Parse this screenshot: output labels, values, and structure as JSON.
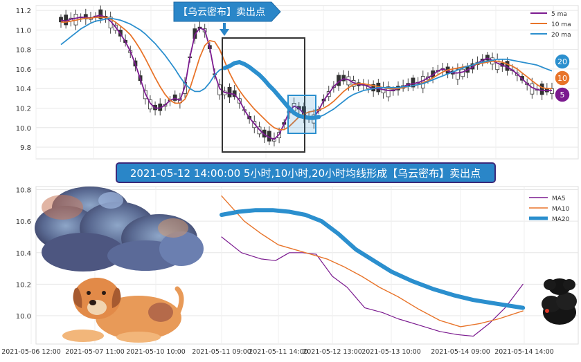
{
  "banner_top": "【乌云密布】卖出点",
  "banner_mid": "2021-05-12 14:00:00 5小时,10小时,20小时均线形成【乌云密布】卖出点",
  "colors": {
    "ma5": "#7b1a8f",
    "ma10": "#e8742a",
    "ma20": "#2b8fce",
    "banner": "#1f78c8",
    "banner_mid_border": "#3b2a7a",
    "box": "#333333"
  },
  "chart_data": [
    {
      "type": "line",
      "title": "",
      "ylim": [
        9.68,
        11.25
      ],
      "yticks": [
        "9.8",
        "10.0",
        "10.2",
        "10.4",
        "10.6",
        "10.8",
        "11.0",
        "11.2"
      ],
      "ytick_values": [
        9.8,
        10.0,
        10.2,
        10.4,
        10.6,
        10.8,
        11.0,
        11.2
      ],
      "legend": [
        "5 ma",
        "10 ma",
        "20 ma"
      ],
      "legend_position": "top-right",
      "grid": true,
      "badges": [
        "20",
        "10",
        "5"
      ],
      "n_points": 100,
      "series": [
        {
          "name": "5 ma",
          "values": [
            11.1,
            11.09,
            11.11,
            11.12,
            11.13,
            11.13,
            11.12,
            11.14,
            11.15,
            11.13,
            11.09,
            11.03,
            10.96,
            10.88,
            10.78,
            10.65,
            10.5,
            10.35,
            10.25,
            10.2,
            10.2,
            10.23,
            10.28,
            10.3,
            10.28,
            10.42,
            10.72,
            10.95,
            11.02,
            11.0,
            10.82,
            10.55,
            10.4,
            10.36,
            10.35,
            10.34,
            10.28,
            10.18,
            10.1,
            10.04,
            9.98,
            9.93,
            9.9,
            9.88,
            9.93,
            10.04,
            10.16,
            10.22,
            10.2,
            10.14,
            10.1,
            10.1,
            10.18,
            10.28,
            10.35,
            10.42,
            10.47,
            10.5,
            10.49,
            10.46,
            10.44,
            10.44,
            10.42,
            10.4,
            10.4,
            10.39,
            10.38,
            10.38,
            10.4,
            10.42,
            10.44,
            10.45,
            10.46,
            10.48,
            10.51,
            10.54,
            10.58,
            10.6,
            10.58,
            10.56,
            10.56,
            10.57,
            10.59,
            10.62,
            10.66,
            10.69,
            10.71,
            10.69,
            10.66,
            10.64,
            10.62,
            10.59,
            10.55,
            10.5,
            10.45,
            10.41,
            10.39,
            10.38,
            10.38,
            10.38
          ]
        },
        {
          "name": "10 ma",
          "values": [
            11.08,
            11.08,
            11.09,
            11.1,
            11.11,
            11.12,
            11.12,
            11.13,
            11.13,
            11.13,
            11.11,
            11.08,
            11.04,
            11.0,
            10.95,
            10.88,
            10.8,
            10.71,
            10.61,
            10.51,
            10.42,
            10.34,
            10.28,
            10.25,
            10.25,
            10.29,
            10.4,
            10.56,
            10.72,
            10.84,
            10.89,
            10.88,
            10.8,
            10.68,
            10.56,
            10.46,
            10.38,
            10.31,
            10.25,
            10.19,
            10.14,
            10.09,
            10.04,
            10.0,
            9.98,
            9.98,
            10.01,
            10.06,
            10.11,
            10.14,
            10.16,
            10.17,
            10.18,
            10.2,
            10.23,
            10.27,
            10.32,
            10.37,
            10.41,
            10.44,
            10.45,
            10.45,
            10.44,
            10.43,
            10.42,
            10.41,
            10.4,
            10.4,
            10.4,
            10.41,
            10.42,
            10.43,
            10.44,
            10.46,
            10.48,
            10.51,
            10.54,
            10.57,
            10.59,
            10.6,
            10.61,
            10.62,
            10.63,
            10.64,
            10.65,
            10.66,
            10.67,
            10.68,
            10.68,
            10.67,
            10.65,
            10.63,
            10.6,
            10.56,
            10.52,
            10.48,
            10.44,
            10.41,
            10.4,
            10.4
          ]
        },
        {
          "name": "20 ma",
          "values": [
            10.85,
            10.89,
            10.93,
            10.97,
            11.01,
            11.04,
            11.07,
            11.09,
            11.1,
            11.11,
            11.12,
            11.11,
            11.1,
            11.08,
            11.06,
            11.03,
            11.0,
            10.96,
            10.91,
            10.86,
            10.8,
            10.74,
            10.67,
            10.6,
            10.52,
            10.45,
            10.4,
            10.37,
            10.37,
            10.4,
            10.46,
            10.54,
            10.59,
            10.61,
            10.63,
            10.66,
            10.67,
            10.65,
            10.62,
            10.58,
            10.54,
            10.49,
            10.43,
            10.38,
            10.32,
            10.26,
            10.2,
            10.15,
            10.12,
            10.11,
            10.1,
            10.1,
            10.11,
            10.13,
            10.16,
            10.19,
            10.23,
            10.27,
            10.31,
            10.34,
            10.36,
            10.38,
            10.39,
            10.4,
            10.41,
            10.41,
            10.41,
            10.41,
            10.41,
            10.42,
            10.42,
            10.43,
            10.44,
            10.45,
            10.47,
            10.49,
            10.51,
            10.53,
            10.55,
            10.57,
            10.59,
            10.61,
            10.63,
            10.64,
            10.66,
            10.67,
            10.68,
            10.69,
            10.7,
            10.7,
            10.7,
            10.69,
            10.68,
            10.67,
            10.66,
            10.65,
            10.64,
            10.62,
            10.6,
            10.58
          ]
        }
      ]
    },
    {
      "type": "line",
      "title": "",
      "ylim": [
        9.82,
        10.82
      ],
      "yticks": [
        "10.0",
        "10.2",
        "10.4",
        "10.6",
        "10.8"
      ],
      "ytick_values": [
        10.0,
        10.2,
        10.4,
        10.6,
        10.8
      ],
      "x": [
        "2021-05-06 12:00",
        "2021-05-07 11:00",
        "2021-05-10 10:00",
        "2021-05-11 09:00",
        "2021-05-11 14:00",
        "2021-05-12 13:00",
        "2021-05-13 10:00",
        "2021-05-14 09:00",
        "2021-05-14 14:00"
      ],
      "legend": [
        "MA5",
        "MA10",
        "MA20"
      ],
      "legend_position": "top-right",
      "grid": true,
      "series": [
        {
          "name": "MA5",
          "x": [
            3,
            3.35,
            3.7,
            3.95,
            4.2,
            4.45,
            4.7,
            5.0,
            5.25,
            5.55,
            5.85,
            6.1,
            6.4,
            6.7,
            6.95,
            7.2,
            7.45,
            7.7,
            7.98
          ],
          "values": [
            10.5,
            10.4,
            10.36,
            10.35,
            10.4,
            10.4,
            10.39,
            10.25,
            10.18,
            10.05,
            10.02,
            9.98,
            9.94,
            9.9,
            9.88,
            9.87,
            9.95,
            10.05,
            10.2
          ]
        },
        {
          "name": "MA10",
          "x": [
            3,
            3.4,
            3.7,
            4.0,
            4.3,
            4.6,
            4.9,
            5.2,
            5.5,
            5.8,
            6.1,
            6.4,
            6.7,
            7.0,
            7.3,
            7.6,
            7.98
          ],
          "values": [
            10.76,
            10.6,
            10.52,
            10.45,
            10.42,
            10.39,
            10.36,
            10.31,
            10.25,
            10.18,
            10.12,
            10.04,
            9.97,
            9.93,
            9.95,
            9.98,
            10.03
          ]
        },
        {
          "name": "MA20",
          "x": [
            3,
            3.3,
            3.6,
            3.9,
            4.2,
            4.5,
            4.8,
            5.1,
            5.4,
            5.7,
            6.0,
            6.3,
            6.6,
            6.9,
            7.2,
            7.5,
            7.98
          ],
          "values": [
            10.64,
            10.66,
            10.67,
            10.67,
            10.66,
            10.64,
            10.6,
            10.52,
            10.42,
            10.35,
            10.28,
            10.22,
            10.17,
            10.13,
            10.1,
            10.08,
            10.05
          ]
        }
      ]
    }
  ]
}
